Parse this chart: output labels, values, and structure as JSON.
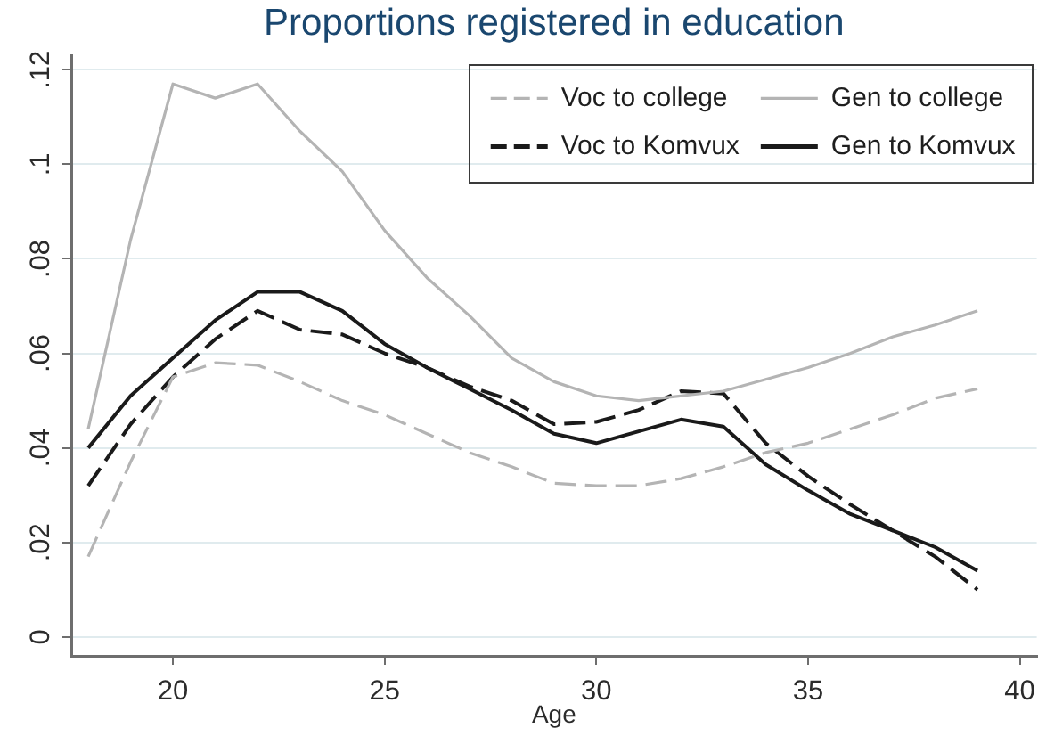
{
  "chart_data": {
    "type": "line",
    "title": "Proportions registered in education",
    "xlabel": "Age",
    "x": [
      18,
      19,
      20,
      21,
      22,
      23,
      24,
      25,
      26,
      27,
      28,
      29,
      30,
      31,
      32,
      33,
      34,
      35,
      36,
      37,
      38,
      39
    ],
    "series": [
      {
        "name": "Voc to college",
        "color": "#b4b4b4",
        "line_style": "dashed",
        "values": [
          0.017,
          0.037,
          0.055,
          0.058,
          0.0575,
          0.054,
          0.05,
          0.047,
          0.043,
          0.039,
          0.036,
          0.0325,
          0.032,
          0.032,
          0.0335,
          0.036,
          0.039,
          0.041,
          0.044,
          0.047,
          0.0505,
          0.0525
        ]
      },
      {
        "name": "Gen to college",
        "color": "#b4b4b4",
        "line_style": "solid",
        "values": [
          0.044,
          0.084,
          0.117,
          0.114,
          0.117,
          0.107,
          0.0985,
          0.086,
          0.076,
          0.068,
          0.059,
          0.054,
          0.051,
          0.05,
          0.051,
          0.052,
          0.0545,
          0.057,
          0.06,
          0.0635,
          0.066,
          0.069
        ]
      },
      {
        "name": "Voc to Komvux",
        "color": "#1a1a1a",
        "line_style": "dashed",
        "values": [
          0.032,
          0.045,
          0.055,
          0.063,
          0.069,
          0.065,
          0.064,
          0.06,
          0.057,
          0.053,
          0.05,
          0.045,
          0.0455,
          0.048,
          0.052,
          0.0515,
          0.041,
          0.034,
          0.028,
          0.0225,
          0.017,
          0.01
        ]
      },
      {
        "name": "Gen to Komvux",
        "color": "#1a1a1a",
        "line_style": "solid",
        "values": [
          0.04,
          0.051,
          0.059,
          0.067,
          0.073,
          0.073,
          0.069,
          0.062,
          0.057,
          0.0525,
          0.048,
          0.043,
          0.041,
          0.0435,
          0.046,
          0.0445,
          0.0365,
          0.031,
          0.026,
          0.0225,
          0.019,
          0.014
        ]
      }
    ],
    "xlim": [
      17.6,
      40.4
    ],
    "xticks": [
      20,
      25,
      30,
      35,
      40
    ],
    "ylim": [
      -0.004,
      0.123
    ],
    "yticks": [
      0,
      {
        "value": 0.02,
        "label": ".02"
      },
      {
        "value": 0.04,
        "label": ".04"
      },
      {
        "value": 0.06,
        "label": ".06"
      },
      {
        "value": 0.08,
        "label": ".08"
      },
      {
        "value": 0.1,
        "label": ".1"
      },
      {
        "value": 0.12,
        "label": ".12"
      }
    ],
    "grid": "y",
    "legend": "top right",
    "marker": "none"
  }
}
